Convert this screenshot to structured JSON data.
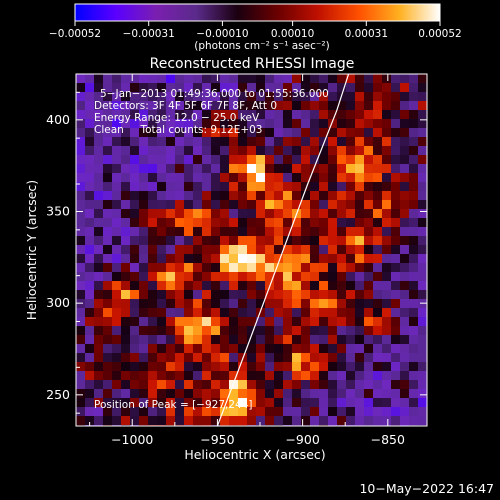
{
  "chart_data": {
    "type": "heatmap",
    "title": "Reconstructed RHESSI Image",
    "xlabel": "Heliocentric X (arcsec)",
    "ylabel": "Heliocentric Y (arcsec)",
    "xlim": [
      -1033,
      -827
    ],
    "ylim": [
      233,
      425
    ],
    "x_ticks": [
      -1000,
      -950,
      -900,
      -850
    ],
    "x_tick_labels": [
      "−1000",
      "−950",
      "−900",
      "−850"
    ],
    "y_ticks": [
      250,
      300,
      350,
      400
    ],
    "y_tick_labels": [
      "250",
      "300",
      "350",
      "400"
    ],
    "colorbar": {
      "min": -0.00052,
      "max": 0.00052,
      "ticks": [
        -0.00052,
        -0.00031,
        -0.0001,
        0.0001,
        0.00031,
        0.00052
      ],
      "tick_labels": [
        "−0.00052",
        "−0.00031",
        "−0.00010",
        "0.00010",
        "0.00031",
        "0.00052"
      ],
      "units": "(photons cm⁻² s⁻¹ asec⁻²)",
      "colormap": [
        "#0000ff",
        "#5a00ff",
        "#7a1fb0",
        "#5a2a8a",
        "#1a0010",
        "#6a0000",
        "#c01000",
        "#ff5000",
        "#ffb020",
        "#ffffff"
      ]
    },
    "annotations": [
      "5−Jan−2013 01:49:36.000 to 01:55:36.000",
      "Detectors: 3F 4F 5F 6F 7F 8F, Att 0",
      "Energy Range: 12.0 − 25.0 keV",
      "Clean     Total counts: 9.12E+03",
      "Position of Peak = [−927,244]"
    ],
    "limb_curve": [
      [
        -950,
        233
      ],
      [
        -933,
        275
      ],
      [
        -915,
        320
      ],
      [
        -897,
        365
      ],
      [
        -880,
        405
      ],
      [
        -873,
        425
      ]
    ],
    "peak": [
      -927,
      244
    ],
    "hot_spots": [
      {
        "x": -937,
        "y": 324,
        "amp": 1.0
      },
      {
        "x": -930,
        "y": 372,
        "amp": 0.9
      },
      {
        "x": -938,
        "y": 248,
        "amp": 0.85
      },
      {
        "x": -975,
        "y": 315,
        "amp": 0.8
      },
      {
        "x": -1005,
        "y": 305,
        "amp": 0.7
      },
      {
        "x": -962,
        "y": 285,
        "amp": 0.75
      },
      {
        "x": -1018,
        "y": 290,
        "amp": 0.55
      },
      {
        "x": -985,
        "y": 345,
        "amp": 0.6
      },
      {
        "x": -990,
        "y": 260,
        "amp": 0.55
      },
      {
        "x": -960,
        "y": 345,
        "amp": 0.65
      },
      {
        "x": -910,
        "y": 318,
        "amp": 0.6
      },
      {
        "x": -888,
        "y": 300,
        "amp": 0.55
      },
      {
        "x": -870,
        "y": 330,
        "amp": 0.55
      },
      {
        "x": -855,
        "y": 290,
        "amp": 0.5
      },
      {
        "x": -900,
        "y": 268,
        "amp": 0.55
      },
      {
        "x": -868,
        "y": 378,
        "amp": 0.5
      },
      {
        "x": -913,
        "y": 352,
        "amp": 0.5
      },
      {
        "x": -850,
        "y": 352,
        "amp": 0.45
      },
      {
        "x": -1022,
        "y": 262,
        "amp": 0.45
      },
      {
        "x": -945,
        "y": 395,
        "amp": 0.45
      }
    ]
  },
  "footer": {
    "timestamp": "10−May−2022 16:47"
  }
}
